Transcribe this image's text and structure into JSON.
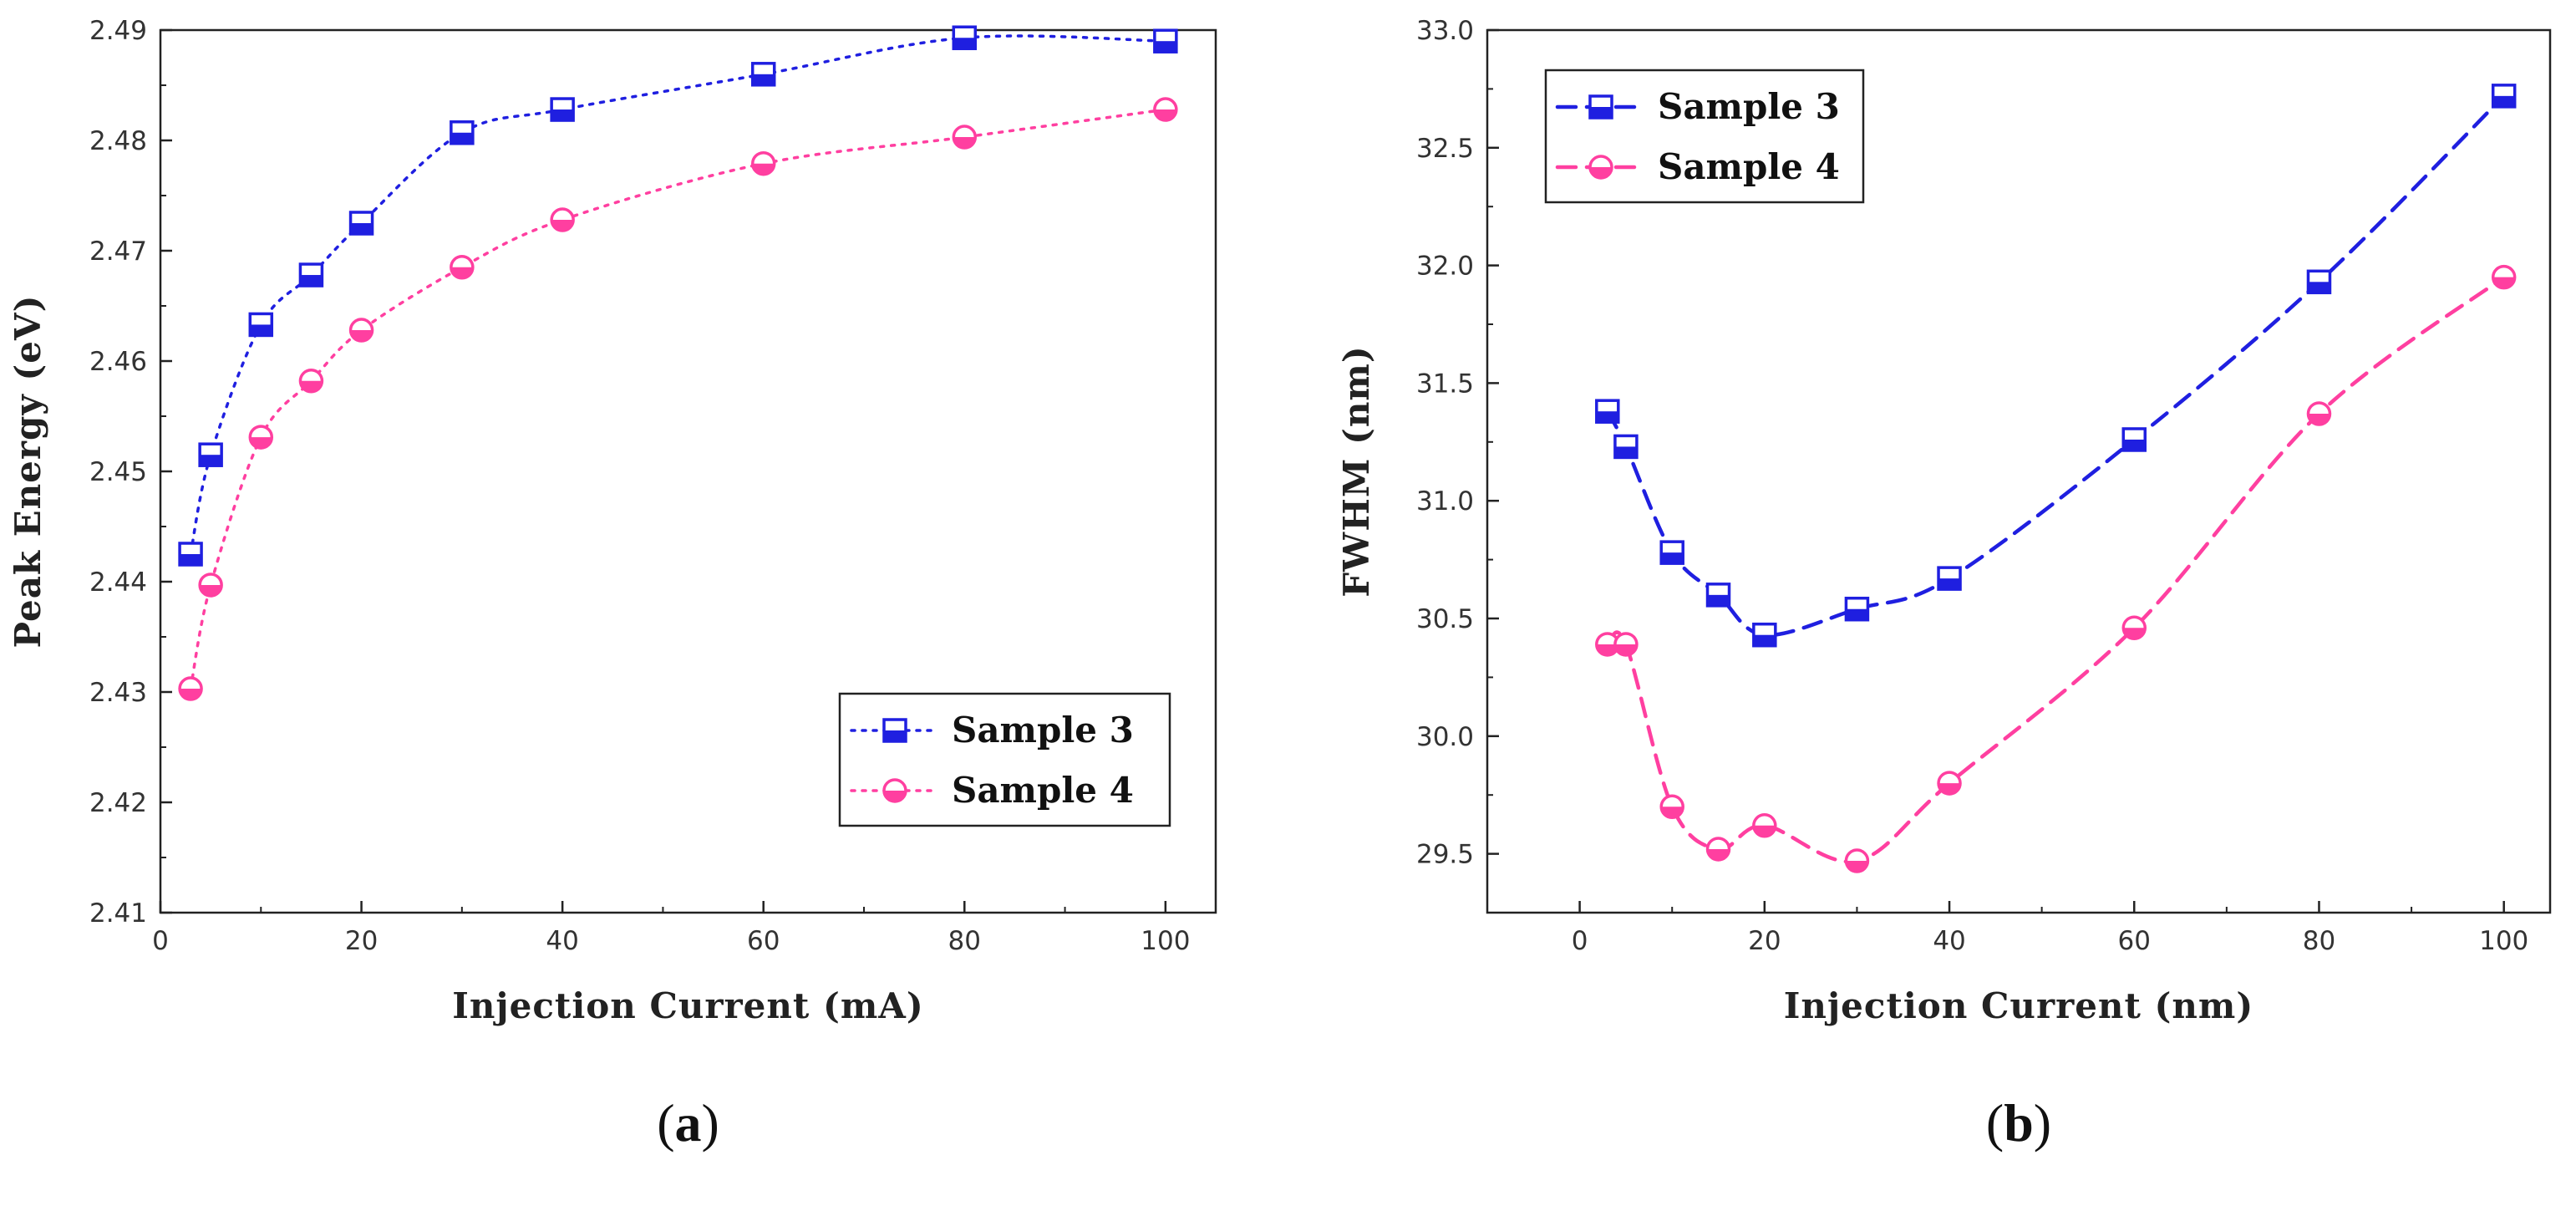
{
  "chart_data": [
    {
      "type": "line",
      "panel_label": "(a)",
      "panel_label_parts": [
        "(",
        "a",
        ")"
      ],
      "xlabel": "Injection Current (mA)",
      "ylabel": "Peak Energy (eV)",
      "xlim": [
        0,
        105
      ],
      "ylim": [
        2.41,
        2.49
      ],
      "xticks": [
        0,
        20,
        40,
        60,
        80,
        100
      ],
      "yticks": [
        2.41,
        2.42,
        2.43,
        2.44,
        2.45,
        2.46,
        2.47,
        2.48,
        2.49
      ],
      "ytick_labels": [
        "2.41",
        "2.42",
        "2.43",
        "2.44",
        "2.45",
        "2.46",
        "2.47",
        "2.48",
        "2.49"
      ],
      "line_style": "dotted",
      "legend_position": "bottom-right",
      "series": [
        {
          "name": "Sample 3",
          "color": "#1f1fe0",
          "marker": "square-half",
          "x": [
            3,
            5,
            10,
            15,
            20,
            30,
            40,
            60,
            80,
            100
          ],
          "values": [
            2.4425,
            2.4515,
            2.4633,
            2.4678,
            2.4725,
            2.4807,
            2.4828,
            2.486,
            2.4893,
            2.489
          ]
        },
        {
          "name": "Sample 4",
          "color": "#ff3fa0",
          "marker": "circle-half",
          "x": [
            3,
            5,
            10,
            15,
            20,
            30,
            40,
            60,
            80,
            100
          ],
          "values": [
            2.4303,
            2.4397,
            2.4531,
            2.4582,
            2.4628,
            2.4685,
            2.4728,
            2.4779,
            2.4803,
            2.4828
          ]
        }
      ]
    },
    {
      "type": "line",
      "panel_label": "(b)",
      "panel_label_parts": [
        "(",
        "b",
        ")"
      ],
      "xlabel": "Injection Current (nm)",
      "ylabel": "FWHM (nm)",
      "xlim": [
        -10,
        105
      ],
      "ylim": [
        29.25,
        33.0
      ],
      "xticks": [
        0,
        20,
        40,
        60,
        80,
        100
      ],
      "yticks": [
        29.5,
        30.0,
        30.5,
        31.0,
        31.5,
        32.0,
        32.5,
        33.0
      ],
      "ytick_labels": [
        "29.5",
        "30.0",
        "30.5",
        "31.0",
        "31.5",
        "32.0",
        "32.5",
        "33.0"
      ],
      "line_style": "dashed",
      "legend_position": "top-left",
      "series": [
        {
          "name": "Sample 3",
          "color": "#1f1fe0",
          "marker": "square-half",
          "x": [
            3,
            5,
            10,
            15,
            20,
            30,
            40,
            60,
            80,
            100
          ],
          "values": [
            31.38,
            31.23,
            30.78,
            30.6,
            30.43,
            30.54,
            30.67,
            31.26,
            31.93,
            32.72
          ]
        },
        {
          "name": "Sample 4",
          "color": "#ff3fa0",
          "marker": "circle-half",
          "x": [
            3,
            5,
            10,
            15,
            20,
            30,
            40,
            60,
            80,
            100
          ],
          "values": [
            30.39,
            30.39,
            29.7,
            29.52,
            29.62,
            29.47,
            29.8,
            30.46,
            31.37,
            31.95
          ]
        }
      ]
    }
  ]
}
